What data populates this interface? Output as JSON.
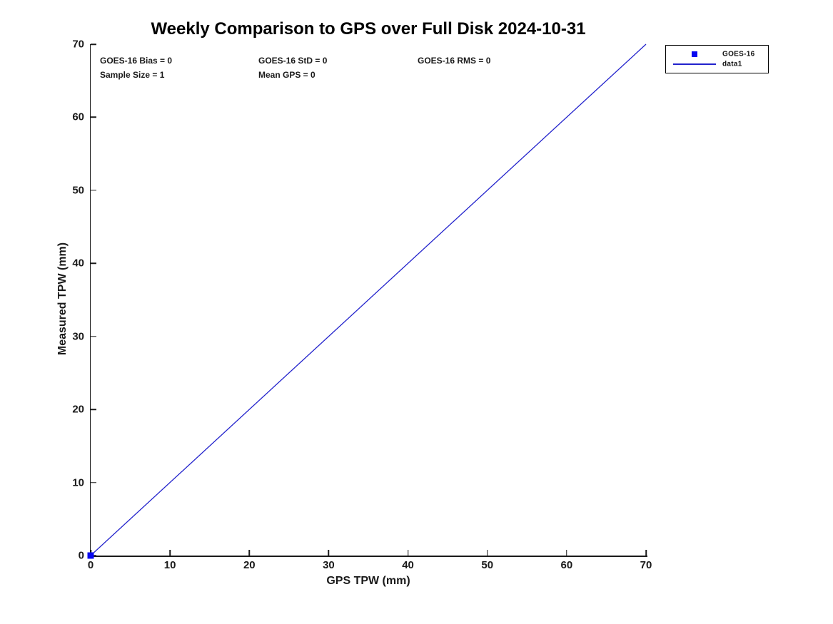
{
  "chart_data": {
    "type": "scatter",
    "title": "Weekly Comparison to GPS over Full Disk 2024-10-31",
    "xlabel": "GPS TPW (mm)",
    "ylabel": "Measured TPW (mm)",
    "xlim": [
      0,
      70
    ],
    "ylim": [
      0,
      70
    ],
    "xticks": [
      0,
      10,
      20,
      30,
      40,
      50,
      60,
      70
    ],
    "yticks": [
      0,
      10,
      20,
      30,
      40,
      50,
      60,
      70
    ],
    "grid": false,
    "legend_position": "outside-top-right",
    "series": [
      {
        "name": "GOES-16",
        "type": "scatter",
        "marker": "filled-square",
        "color": "#0808F0",
        "points": [
          [
            0,
            0
          ]
        ]
      },
      {
        "name": "data1",
        "type": "line",
        "color": "#2222CC",
        "points": [
          [
            0,
            0
          ],
          [
            70,
            70
          ]
        ]
      }
    ],
    "annotations": [
      {
        "text": "GOES-16 Bias = 0"
      },
      {
        "text": "GOES-16 StD = 0"
      },
      {
        "text": "GOES-16 RMS = 0"
      },
      {
        "text": "Sample Size = 1"
      },
      {
        "text": "Mean GPS = 0"
      }
    ]
  },
  "colors": {
    "background": "#ffffff",
    "axis_and_text": "#1a1a1a",
    "marker_blue": "#0808F0",
    "line_blue": "#2222CC"
  }
}
